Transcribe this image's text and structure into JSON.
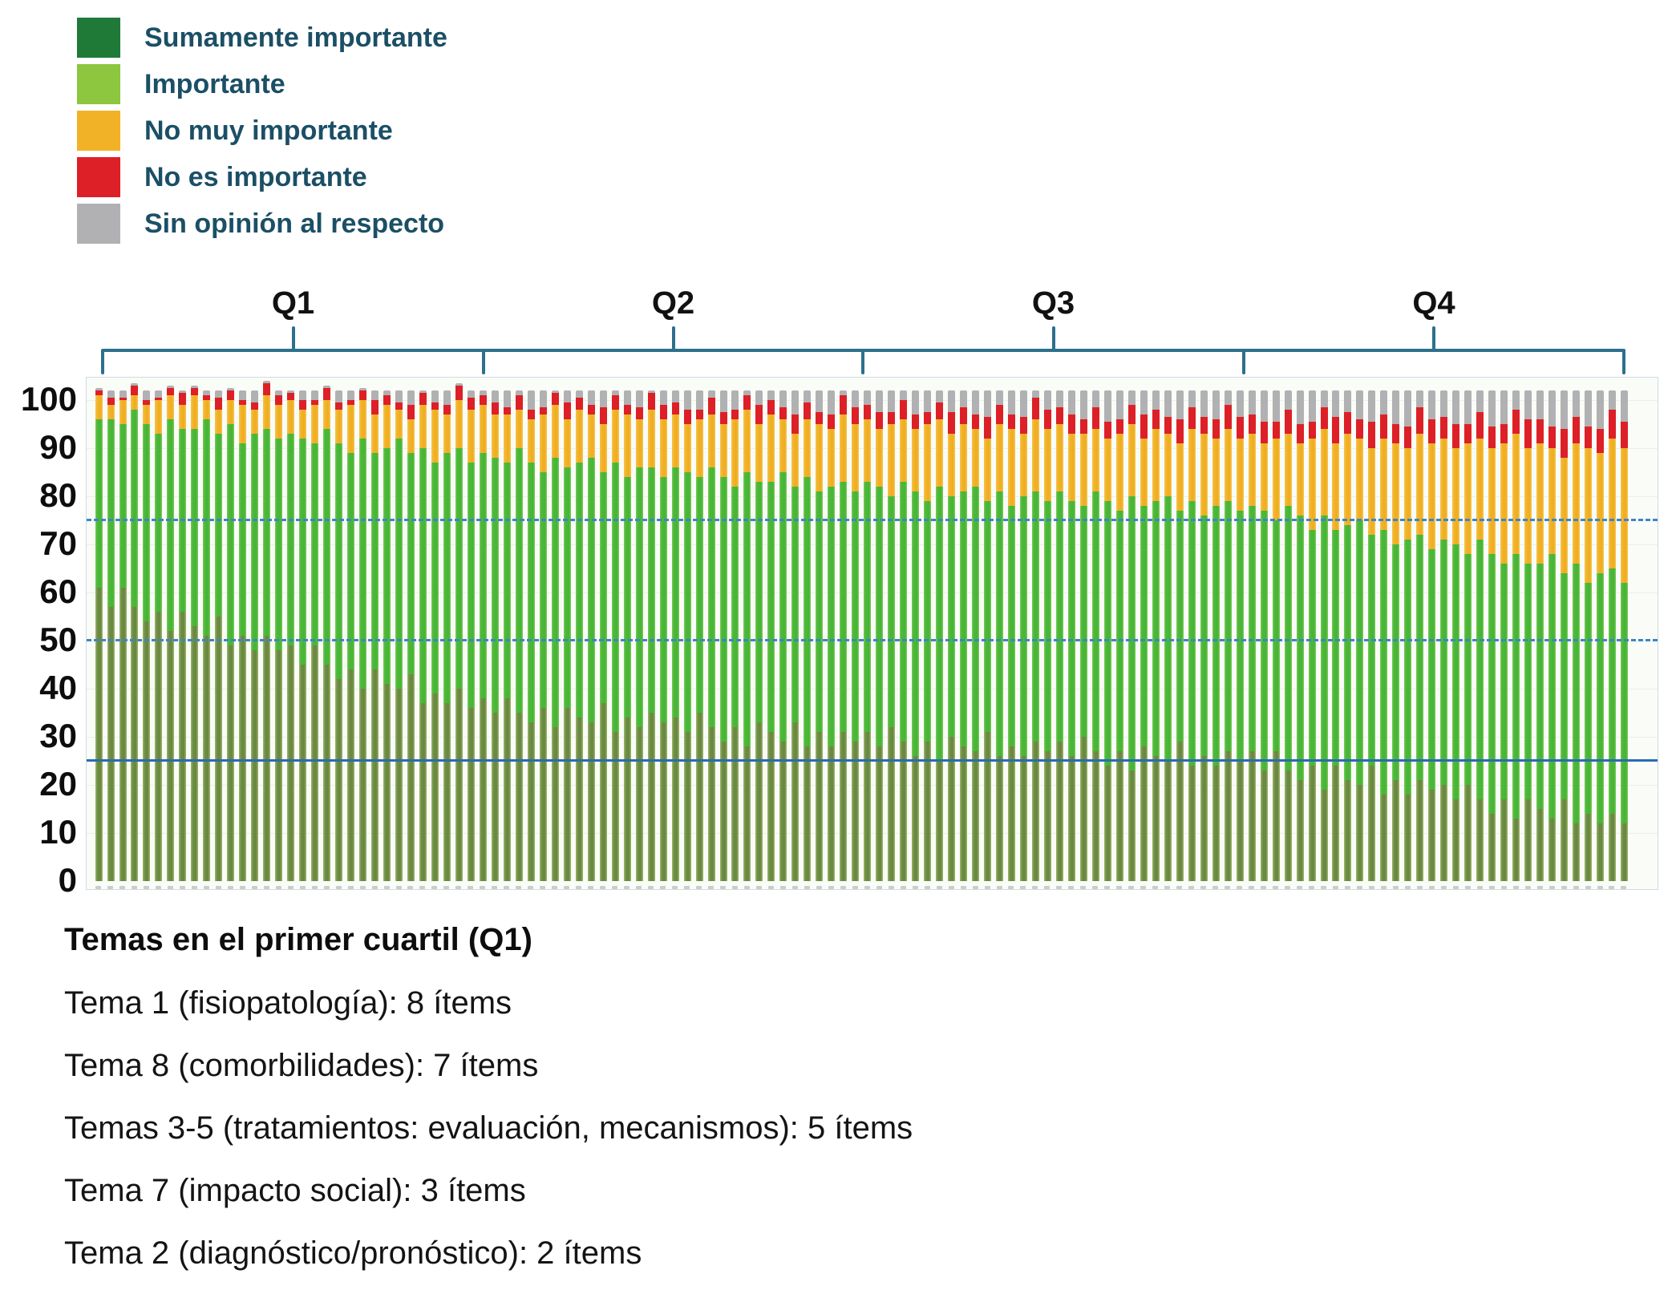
{
  "legend": {
    "text_color": "#1b4f66",
    "items": [
      {
        "label": "Sumamente importante",
        "color": "#1f7a38"
      },
      {
        "label": "Importante",
        "color": "#8dc63f"
      },
      {
        "label": "No muy importante",
        "color": "#f2b227"
      },
      {
        "label": "No es importante",
        "color": "#dd2027"
      },
      {
        "label": "Sin opinión al respecto",
        "color": "#b1b1b3"
      }
    ]
  },
  "quartiles": {
    "labels": [
      "Q1",
      "Q2",
      "Q3",
      "Q4"
    ],
    "bracket_color": "#2d6f8e"
  },
  "y_axis": {
    "ticks": [
      0,
      10,
      20,
      30,
      40,
      50,
      60,
      70,
      80,
      90,
      100
    ]
  },
  "chart_data": {
    "type": "bar",
    "subtype": "stacked-percent-items",
    "n_bars": 128,
    "bars_per_quartile": 32,
    "x_labels_illegible": true,
    "ylim": [
      0,
      104
    ],
    "grid": "faint-horizontal",
    "legend_position": "top-left",
    "reference_lines": [
      {
        "value": 25,
        "style": "solid",
        "color": "#2a6bb5"
      },
      {
        "value": 50,
        "style": "dashed",
        "color": "#3d85c8"
      },
      {
        "value": 75,
        "style": "dashed",
        "color": "#3d85c8"
      }
    ],
    "series_order_bottom_to_top": [
      "Sumamente importante",
      "Importante",
      "No muy importante",
      "No es importante",
      "Sin opinión al respecto"
    ],
    "cum_sumamente": [
      61,
      57,
      61,
      57,
      54,
      56,
      52,
      56,
      53,
      51,
      55,
      49,
      51,
      48,
      51,
      48,
      49,
      45,
      49,
      45,
      42,
      44,
      40,
      44,
      41,
      40,
      43,
      37,
      39,
      37,
      40,
      36,
      38,
      35,
      38,
      35,
      33,
      36,
      32,
      36,
      34,
      33,
      37,
      31,
      34,
      32,
      35,
      33,
      34,
      31,
      35,
      32,
      29,
      32,
      28,
      33,
      31,
      29,
      33,
      28,
      31,
      28,
      31,
      29,
      31,
      28,
      32,
      29,
      26,
      29,
      25,
      30,
      28,
      27,
      31,
      26,
      28,
      26,
      29,
      27,
      29,
      26,
      30,
      27,
      24,
      27,
      23,
      28,
      26,
      25,
      29,
      24,
      26,
      24,
      27,
      25,
      27,
      23,
      27,
      23,
      21,
      24,
      19,
      24,
      21,
      20,
      24,
      18,
      21,
      18,
      21,
      19,
      20,
      17,
      20,
      17,
      14,
      17,
      13,
      17,
      15,
      13,
      17,
      12,
      14,
      12,
      14,
      12
    ],
    "cum_importante": [
      96,
      96,
      95,
      98,
      95,
      93,
      96,
      94,
      94,
      96,
      93,
      95,
      91,
      93,
      94,
      92,
      93,
      92,
      91,
      94,
      91,
      89,
      92,
      89,
      90,
      92,
      89,
      90,
      87,
      89,
      90,
      87,
      89,
      88,
      87,
      90,
      87,
      85,
      88,
      86,
      87,
      88,
      85,
      87,
      84,
      86,
      86,
      84,
      86,
      85,
      84,
      86,
      84,
      82,
      85,
      83,
      83,
      85,
      82,
      84,
      81,
      82,
      83,
      81,
      83,
      82,
      80,
      83,
      81,
      79,
      82,
      80,
      81,
      82,
      79,
      81,
      78,
      80,
      81,
      79,
      81,
      79,
      78,
      81,
      79,
      77,
      80,
      78,
      79,
      80,
      77,
      79,
      76,
      78,
      79,
      77,
      78,
      77,
      75,
      78,
      76,
      73,
      76,
      73,
      74,
      75,
      72,
      73,
      70,
      71,
      72,
      69,
      71,
      70,
      68,
      71,
      68,
      66,
      68,
      66,
      66,
      68,
      64,
      66,
      62,
      64,
      65,
      62
    ],
    "cum_no_muy_importante": [
      101,
      99,
      100,
      101,
      99,
      100,
      101,
      99,
      101,
      100,
      98,
      100,
      99,
      98,
      101,
      99,
      100,
      98,
      99,
      100,
      98,
      99,
      100,
      97,
      99,
      98,
      96,
      99,
      98,
      97,
      100,
      98,
      99,
      97,
      97,
      98,
      96,
      97,
      99,
      96,
      98,
      97,
      95,
      98,
      97,
      96,
      98,
      96,
      97,
      95,
      96,
      97,
      95,
      96,
      98,
      95,
      97,
      96,
      93,
      96,
      95,
      94,
      97,
      95,
      96,
      94,
      95,
      96,
      94,
      95,
      96,
      93,
      95,
      94,
      92,
      95,
      94,
      93,
      96,
      94,
      95,
      93,
      93,
      94,
      92,
      93,
      95,
      92,
      94,
      93,
      91,
      94,
      93,
      92,
      94,
      92,
      93,
      91,
      92,
      93,
      91,
      92,
      94,
      91,
      93,
      92,
      90,
      92,
      91,
      90,
      93,
      91,
      92,
      90,
      91,
      92,
      90,
      91,
      93,
      90,
      91,
      90,
      88,
      91,
      90,
      89,
      92,
      90
    ],
    "no_es_importante": [
      1,
      1.5,
      0.5,
      2,
      1,
      0.5,
      1.5,
      2.5,
      1.5,
      1,
      2.5,
      2,
      1,
      1.5,
      2.5,
      2,
      1.5,
      2,
      1,
      2.5,
      1.5,
      1,
      2,
      3,
      2,
      1.5,
      3,
      2.5,
      1.5,
      2,
      3,
      2.5,
      2,
      2.5,
      1.5,
      3,
      2,
      1.5,
      2.5,
      3.5,
      2.5,
      2,
      3.5,
      3,
      2,
      2.5,
      3.5,
      3,
      2.5,
      3,
      2,
      3.5,
      2.5,
      2,
      3,
      4,
      3,
      2.5,
      4,
      3.5,
      2.5,
      3,
      4,
      3.5,
      3,
      3.5,
      2.5,
      4,
      3,
      2.5,
      3.5,
      4.5,
      3.5,
      3,
      4.5,
      4,
      3,
      3.5,
      4.5,
      4,
      3.5,
      4,
      3,
      4.5,
      3.5,
      3,
      4,
      5,
      4,
      3.5,
      5,
      4.5,
      3.5,
      4,
      5,
      4.5,
      4,
      4.5,
      3.5,
      5,
      4,
      3.5,
      4.5,
      5.5,
      4.5,
      4,
      5.5,
      5,
      4,
      4.5,
      5.5,
      5,
      4.5,
      5,
      4,
      5.5,
      4.5,
      4,
      5,
      6,
      5,
      4.5,
      6,
      5.5,
      4.5,
      5,
      6,
      5.5
    ],
    "sin_opinion": [
      0.5,
      1.5,
      1.5,
      0.5,
      2,
      1.5,
      0.5,
      0.5,
      0.5,
      1,
      1.5,
      0.5,
      2,
      2.5,
      0.5,
      1,
      0.5,
      2,
      2,
      0.5,
      2.5,
      2,
      0.5,
      2,
      1,
      2.5,
      3,
      0.5,
      2.5,
      3,
      0.5,
      1.5,
      1,
      2.5,
      3.5,
      1,
      4,
      3.5,
      0.5,
      2.5,
      1.5,
      3,
      3.5,
      1,
      3,
      3.5,
      0.5,
      3,
      2.5,
      4,
      4,
      1.5,
      4.5,
      4,
      1,
      3,
      2,
      3.5,
      5,
      2.5,
      4.5,
      5,
      1,
      3.5,
      3,
      4.5,
      4.5,
      2,
      5,
      4.5,
      2.5,
      4.5,
      3.5,
      5,
      5.5,
      3,
      5,
      5.5,
      1.5,
      4,
      3.5,
      5,
      6,
      3.5,
      6.5,
      6,
      3,
      5,
      4,
      5.5,
      6,
      3.5,
      5.5,
      6,
      3,
      5.5,
      5,
      6.5,
      6.5,
      4,
      7,
      6.5,
      3.5,
      5.5,
      4.5,
      6,
      6.5,
      5,
      7,
      7.5,
      3.5,
      6,
      5.5,
      7,
      7,
      4.5,
      7.5,
      7,
      4,
      6,
      6,
      7.5,
      8,
      5.5,
      7.5,
      8,
      4,
      6.5
    ]
  },
  "notes": {
    "title": "Temas en el primer cuartil (Q1)",
    "lines": [
      "Tema 1 (fisiopatología): 8 ítems",
      "Tema 8 (comorbilidades): 7 ítems",
      "Temas 3-5 (tratamientos: evaluación, mecanismos): 5 ítems",
      "Tema 7 (impacto social): 3 ítems",
      "Tema 2 (diagnóstico/pronóstico): 2 ítems"
    ]
  }
}
